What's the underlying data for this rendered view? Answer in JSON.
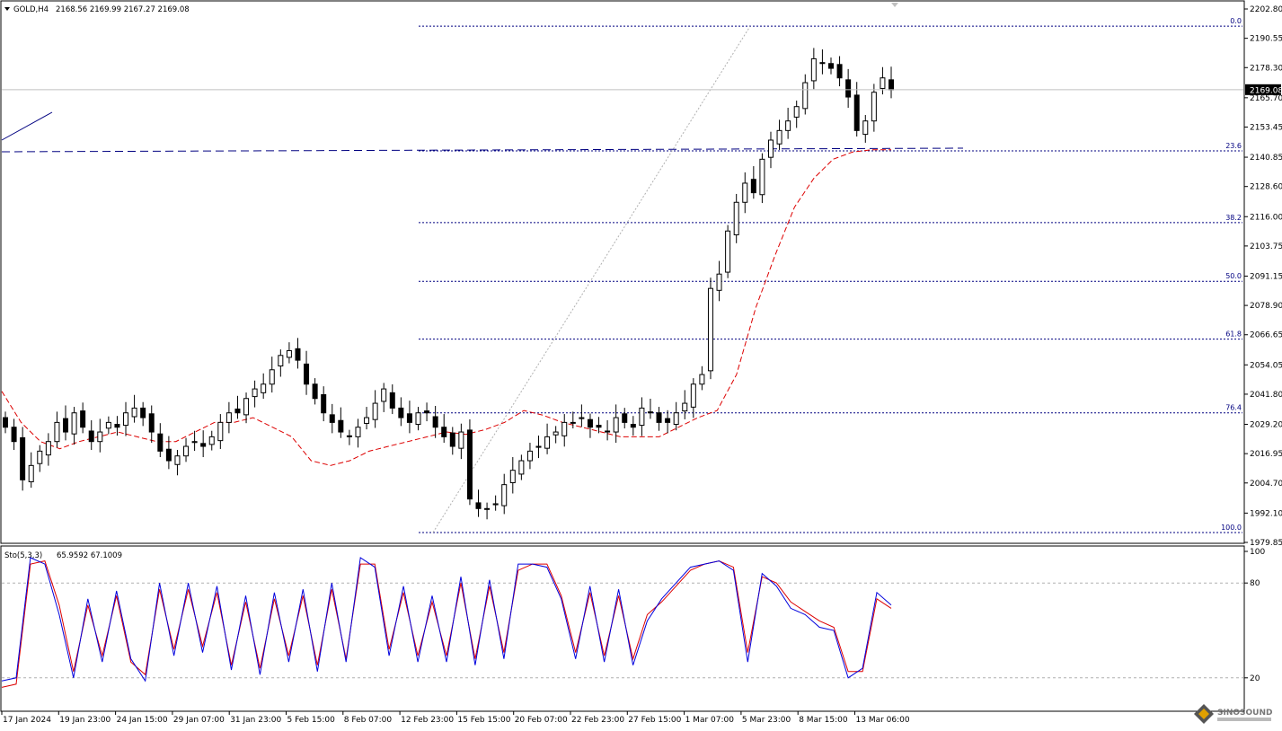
{
  "header": {
    "symbol": "GOLD,H4",
    "ohlc": "2168.56 2169.99 2167.27 2169.08"
  },
  "stoch_header": {
    "label": "Sto(5,3,3)",
    "values": "65.9592 67.1009"
  },
  "price_axis": {
    "ticks": [
      "2202.80",
      "2190.55",
      "2178.30",
      "2165.70",
      "2153.45",
      "2140.85",
      "2128.60",
      "2116.00",
      "2103.75",
      "2091.15",
      "2078.90",
      "2066.65",
      "2054.05",
      "2041.80",
      "2029.20",
      "2016.95",
      "2004.70",
      "1992.10",
      "1979.85"
    ],
    "current_price": "2169.08"
  },
  "stoch_axis": {
    "ticks": [
      "100",
      "80",
      "20"
    ]
  },
  "time_axis": {
    "ticks": [
      "17 Jan 2024",
      "19 Jan 23:00",
      "24 Jan 15:00",
      "29 Jan 07:00",
      "31 Jan 23:00",
      "5 Feb 15:00",
      "8 Feb 07:00",
      "12 Feb 23:00",
      "15 Feb 15:00",
      "20 Feb 07:00",
      "22 Feb 23:00",
      "27 Feb 15:00",
      "1 Mar 07:00",
      "5 Mar 23:00",
      "8 Mar 15:00",
      "13 Mar 06:00"
    ]
  },
  "fibonacci": {
    "levels": [
      {
        "label": "0.0",
        "price": 2195.6
      },
      {
        "label": "23.6",
        "price": 2143.5
      },
      {
        "label": "38.2",
        "price": 2113.5
      },
      {
        "label": "50.0",
        "price": 2089.0
      },
      {
        "label": "61.8",
        "price": 2064.8
      },
      {
        "label": "76.4",
        "price": 2034.0
      },
      {
        "label": "100.0",
        "price": 1984.0
      }
    ]
  },
  "watermark": {
    "text": "SINOSOUND"
  },
  "colors": {
    "candle": "#000000",
    "ma": "#dd0000",
    "fib": "#000080",
    "trendline": "#000080",
    "stoch_main": "#0000dd",
    "stoch_signal": "#dd0000",
    "grid_dash": "#b0b0b0"
  },
  "chart_data": {
    "type": "candlestick",
    "title": "GOLD,H4",
    "ylim": [
      1979.85,
      2202.8
    ],
    "candles_close": [
      2028,
      2022,
      2006,
      2012,
      2018,
      2022,
      2030,
      2026,
      2034,
      2028,
      2022,
      2026,
      2030,
      2028,
      2034,
      2036,
      2032,
      2026,
      2018,
      2014,
      2016,
      2020,
      2022,
      2020,
      2024,
      2030,
      2034,
      2034,
      2040,
      2044,
      2046,
      2052,
      2058,
      2060,
      2056,
      2046,
      2040,
      2034,
      2030,
      2026,
      2024,
      2028,
      2032,
      2038,
      2044,
      2036,
      2032,
      2030,
      2034,
      2034,
      2028,
      2024,
      2020,
      2026,
      1998,
      1994,
      1994,
      1996,
      2004,
      2010,
      2014,
      2018,
      2020,
      2024,
      2026,
      2030,
      2030,
      2032,
      2028,
      2028,
      2026,
      2032,
      2030,
      2028,
      2036,
      2034,
      2030,
      2030,
      2034,
      2038,
      2046,
      2050,
      2086,
      2092,
      2110,
      2122,
      2130,
      2126,
      2140,
      2148,
      2152,
      2156,
      2162,
      2172,
      2182,
      2180,
      2178,
      2174,
      2166,
      2152,
      2156,
      2168,
      2174,
      2169
    ],
    "ma_series": [
      2043,
      2030,
      2022,
      2019,
      2022,
      2024,
      2026,
      2024,
      2022,
      2022,
      2026,
      2030,
      2030,
      2032,
      2028,
      2024,
      2014,
      2012,
      2014,
      2018,
      2020,
      2022,
      2024,
      2026,
      2025,
      2027,
      2030,
      2035,
      2033,
      2030,
      2028,
      2026,
      2024,
      2024,
      2024,
      2028,
      2032,
      2035,
      2050,
      2078,
      2100,
      2120,
      2132,
      2140,
      2143,
      2144,
      2144
    ],
    "stoch_main": [
      18,
      20,
      96,
      92,
      60,
      20,
      70,
      30,
      75,
      32,
      18,
      80,
      34,
      80,
      36,
      78,
      25,
      72,
      22,
      74,
      30,
      76,
      24,
      80,
      30,
      96,
      90,
      34,
      78,
      30,
      72,
      30,
      84,
      28,
      82,
      32,
      92,
      92,
      90,
      70,
      32,
      78,
      30,
      76,
      28,
      56,
      70,
      80,
      90,
      92,
      94,
      88,
      30,
      86,
      78,
      64,
      60,
      52,
      50,
      20,
      26,
      74,
      66
    ],
    "stoch_signal": [
      14,
      16,
      92,
      94,
      66,
      24,
      66,
      34,
      72,
      30,
      22,
      76,
      38,
      76,
      40,
      74,
      28,
      68,
      26,
      70,
      34,
      72,
      28,
      76,
      32,
      92,
      92,
      38,
      74,
      34,
      68,
      34,
      80,
      32,
      78,
      36,
      88,
      92,
      92,
      72,
      36,
      74,
      34,
      72,
      32,
      60,
      68,
      78,
      88,
      92,
      94,
      90,
      36,
      84,
      80,
      68,
      62,
      56,
      52,
      24,
      24,
      70,
      64
    ],
    "fib_levels_percent": [
      0.0,
      23.6,
      38.2,
      50.0,
      61.8,
      76.4,
      100.0
    ],
    "stoch_levels": [
      20,
      80
    ]
  }
}
